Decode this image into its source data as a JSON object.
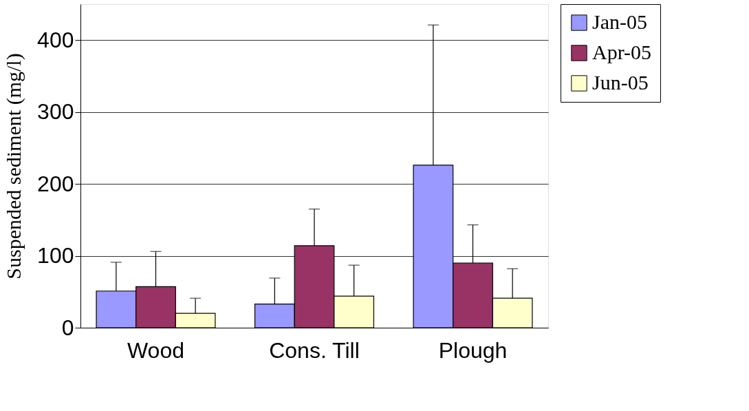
{
  "chart_data": {
    "type": "bar",
    "ylabel": "Suspended sediment (mg/l)",
    "categories": [
      "Wood",
      "Cons. Till",
      "Plough"
    ],
    "series": [
      {
        "name": "Jan-05",
        "color": "#9999ff",
        "values": [
          51,
          33,
          226
        ],
        "errors": [
          [
            51,
            91
          ],
          [
            33,
            69
          ],
          [
            226,
            421
          ]
        ]
      },
      {
        "name": "Apr-05",
        "color": "#993366",
        "values": [
          57,
          114,
          90
        ],
        "errors": [
          [
            57,
            106
          ],
          [
            114,
            165
          ],
          [
            90,
            143
          ]
        ]
      },
      {
        "name": "Jun-05",
        "color": "#ffffcc",
        "values": [
          20,
          44,
          41
        ],
        "errors": [
          [
            20,
            41
          ],
          [
            44,
            87
          ],
          [
            41,
            82
          ]
        ]
      }
    ],
    "ylim": [
      0,
      450
    ],
    "yticks": [
      0,
      100,
      200,
      300,
      400
    ],
    "grid": "y",
    "legend": "right"
  }
}
